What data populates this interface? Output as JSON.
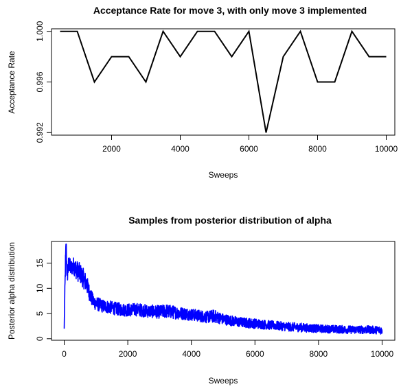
{
  "chart_data": [
    {
      "type": "line",
      "title": "Acceptance Rate for move 3, with only move 3 implemented",
      "xlabel": "Sweeps",
      "ylabel": "Acceptance Rate",
      "xlim": [
        250,
        10250
      ],
      "ylim": [
        0.9918,
        1.0002
      ],
      "x_ticks": [
        "2000",
        "4000",
        "6000",
        "8000",
        "10000"
      ],
      "y_ticks": [
        "0.992",
        "0.996",
        "1.000"
      ],
      "grid": false,
      "series": [
        {
          "color": "#000000",
          "x": [
            500,
            1000,
            1500,
            2000,
            2500,
            3000,
            3500,
            4000,
            4500,
            5000,
            5500,
            6000,
            6500,
            7000,
            7500,
            8000,
            8500,
            9000,
            9500,
            10000
          ],
          "y": [
            1.0,
            1.0,
            0.996,
            0.998,
            0.998,
            0.996,
            1.0,
            0.998,
            1.0,
            1.0,
            0.998,
            1.0,
            0.992,
            0.998,
            1.0,
            0.996,
            0.996,
            1.0,
            0.998,
            0.998
          ]
        }
      ]
    },
    {
      "type": "line",
      "title": "Samples from posterior distribution of alpha",
      "xlabel": "Sweeps",
      "ylabel": "Posterior alpha distribution",
      "xlim": [
        -400,
        10400
      ],
      "ylim": [
        -0.3,
        19.3
      ],
      "x_ticks": [
        "0",
        "2000",
        "4000",
        "6000",
        "8000",
        "10000"
      ],
      "y_ticks": [
        "0",
        "5",
        "10",
        "15"
      ],
      "grid": false,
      "series": [
        {
          "color": "#0000ff",
          "x": [
            0,
            20,
            40,
            60,
            80,
            100,
            150,
            200,
            300,
            400,
            500,
            600,
            700,
            800,
            900,
            1000,
            1200,
            1400,
            1600,
            1800,
            2000,
            2300,
            2600,
            3000,
            3200,
            3500,
            4000,
            4500,
            4700,
            5000,
            5500,
            6000,
            6500,
            7000,
            7500,
            8000,
            8500,
            9000,
            9500,
            10000
          ],
          "y": [
            2,
            9,
            15,
            18.5,
            14,
            13,
            15,
            14,
            14.5,
            13.5,
            13,
            12,
            11,
            9,
            7.5,
            7,
            6.5,
            6.3,
            6,
            5.8,
            5.7,
            5.8,
            5.5,
            5.3,
            5.5,
            5.2,
            4.8,
            4.3,
            4.5,
            3.9,
            3.3,
            3,
            2.7,
            2.4,
            2.2,
            2,
            1.9,
            1.8,
            1.8,
            1.7
          ],
          "noise": [
            1.2,
            1.5,
            2.0,
            2.5,
            2.0,
            2.0,
            1.8,
            1.6,
            1.8,
            2.0,
            2.0,
            2.0,
            1.8,
            1.6,
            1.5,
            1.4,
            1.3,
            1.3,
            1.3,
            1.3,
            1.3,
            1.3,
            1.3,
            1.3,
            1.4,
            1.3,
            1.2,
            1.2,
            1.3,
            1.1,
            1.0,
            1.0,
            0.9,
            0.9,
            0.9,
            0.8,
            0.8,
            0.8,
            0.8,
            0.8
          ]
        }
      ]
    }
  ]
}
